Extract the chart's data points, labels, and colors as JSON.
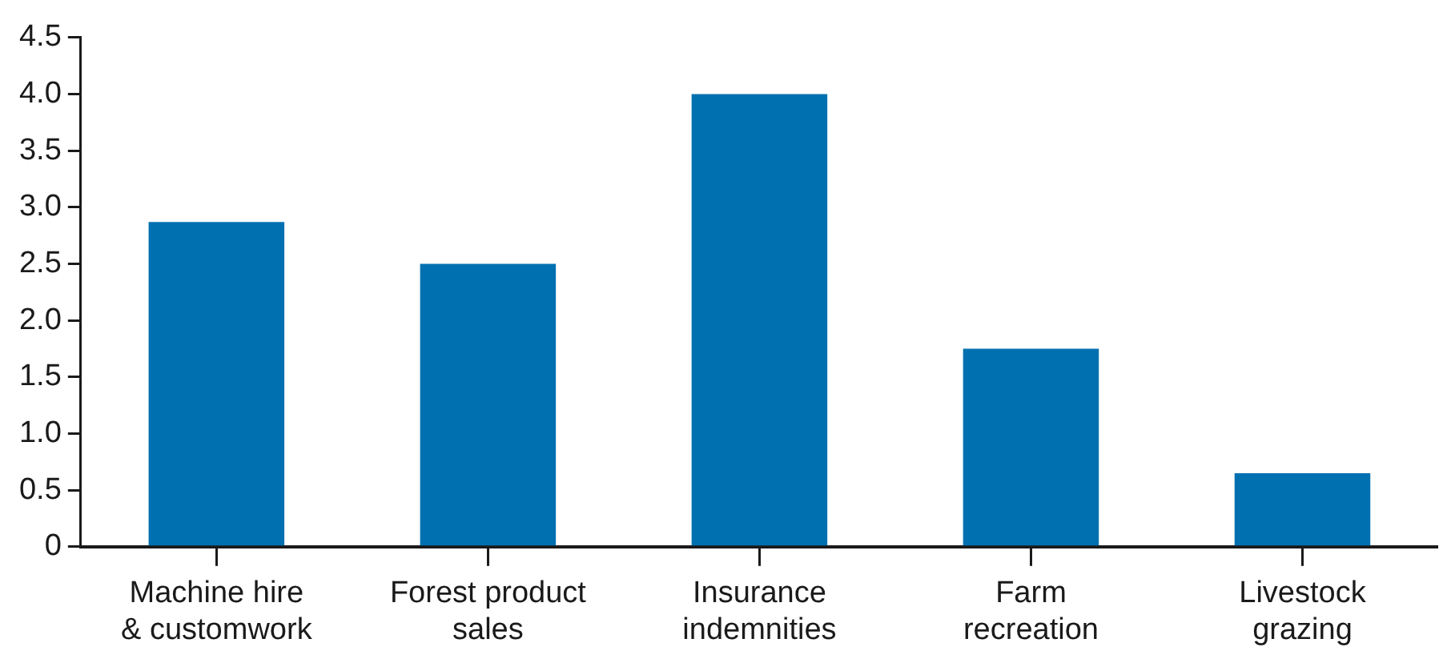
{
  "chart_data": {
    "type": "bar",
    "categories": [
      "Machine hire\n& customwork",
      "Forest product\nsales",
      "Insurance\nindemnities",
      "Farm\nrecreation",
      "Livestock\ngrazing"
    ],
    "values": [
      2.87,
      2.5,
      4.0,
      1.75,
      0.65
    ],
    "color": "#0070b0",
    "ylim": [
      0,
      4.5
    ],
    "yticks": [
      {
        "value": 0,
        "label": "0"
      },
      {
        "value": 0.5,
        "label": "0.5"
      },
      {
        "value": 1,
        "label": "1.0"
      },
      {
        "value": 1.5,
        "label": "1.5"
      },
      {
        "value": 2,
        "label": "2.0"
      },
      {
        "value": 2.5,
        "label": "2.5"
      },
      {
        "value": 3,
        "label": "3.0"
      },
      {
        "value": 3.5,
        "label": "3.5"
      },
      {
        "value": 4,
        "label": "4.0"
      },
      {
        "value": 4.5,
        "label": "4.5"
      }
    ],
    "grid": false,
    "legend": false
  }
}
